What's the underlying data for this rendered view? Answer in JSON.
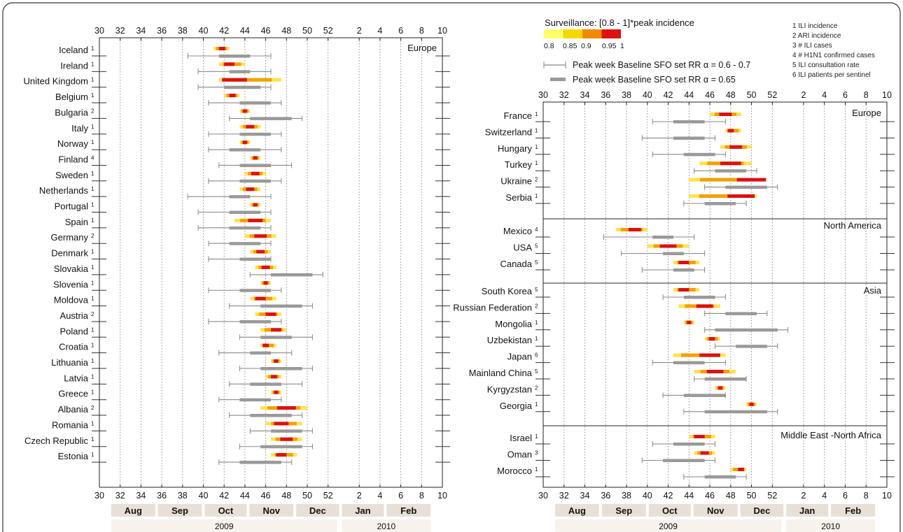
{
  "legend": {
    "scale_title": "Surveillance: [0.8 - 1]*peak incidence",
    "scale_colors": [
      "#ffff66",
      "#f5d800",
      "#f08a00",
      "#e01010"
    ],
    "scale_ticks": [
      "0.8",
      "0.85",
      "0.9",
      "0.95",
      "1"
    ],
    "thin_label": "Peak week Baseline SFO set RR α = 0.6 - 0.7",
    "thick_label": "Peak week Baseline SFO set RR α = 0.65",
    "sources": [
      "1 ILI incidence",
      "2 ARI incidence",
      "3 # ILI cases",
      "4 # H1N1 confirmed cases",
      "5 ILI consultation rate",
      "6 ILI patients per sentinel"
    ]
  },
  "colors": {
    "thin_bar": "#888888",
    "thick_bar": "#999999",
    "month_box": "#e8e0d6",
    "year_box": "#f7f2ec"
  },
  "chart_data": [
    {
      "type": "range",
      "x_axis": {
        "ticks": [
          "30",
          "32",
          "34",
          "36",
          "38",
          "40",
          "42",
          "44",
          "46",
          "48",
          "50",
          "52",
          "2",
          "4",
          "6",
          "8",
          "10"
        ]
      },
      "months": [
        "Aug",
        "Sep",
        "Oct",
        "Nov",
        "Dec",
        "Jan",
        "Feb"
      ],
      "years": [
        "2009",
        "2010"
      ],
      "regions": [
        {
          "name": "Europe",
          "rows": [
            {
              "country": "Iceland",
              "src": "1",
              "surv": [
                41,
                42.5
              ],
              "peak": 41.8,
              "thin": [
                38.5,
                46.5
              ],
              "thick": [
                41.5,
                44.5
              ]
            },
            {
              "country": "Ireland",
              "src": "1",
              "surv": [
                41.5,
                44
              ],
              "peak": 42.5,
              "thin": [
                39.5,
                46.5
              ],
              "thick": [
                42.5,
                44.5
              ]
            },
            {
              "country": "United Kingdom",
              "src": "1",
              "surv": [
                41.5,
                47.5
              ],
              "peak": 43,
              "thin": [
                39.5,
                46.5
              ],
              "thick": [
                42,
                45.5
              ]
            },
            {
              "country": "Belgium",
              "src": "1",
              "surv": [
                42,
                43.5
              ],
              "peak": 42.8,
              "thin": [
                40.5,
                47.5
              ],
              "thick": [
                43.5,
                46.5
              ]
            },
            {
              "country": "Bulgaria",
              "src": "2",
              "surv": [
                43.5,
                44.5
              ],
              "peak": 44,
              "thin": [
                42.5,
                49.5
              ],
              "thick": [
                44.5,
                48.5
              ]
            },
            {
              "country": "Italy",
              "src": "1",
              "surv": [
                43.5,
                45.5
              ],
              "peak": 44.5,
              "thin": [
                40.5,
                47.5
              ],
              "thick": [
                43.5,
                46.5
              ]
            },
            {
              "country": "Norway",
              "src": "1",
              "surv": [
                43.5,
                44.5
              ],
              "peak": 44,
              "thin": [
                40.5,
                47.5
              ],
              "thick": [
                42.5,
                45.5
              ]
            },
            {
              "country": "Finland",
              "src": "4",
              "surv": [
                44.5,
                45.5
              ],
              "peak": 45,
              "thin": [
                41.5,
                48.5
              ],
              "thick": [
                43.5,
                46.5
              ]
            },
            {
              "country": "Sweden",
              "src": "1",
              "surv": [
                44,
                46
              ],
              "peak": 45,
              "thin": [
                40.5,
                47.5
              ],
              "thick": [
                43.5,
                46.5
              ]
            },
            {
              "country": "Netherlands",
              "src": "1",
              "surv": [
                43.5,
                45.5
              ],
              "peak": 44.5,
              "thin": [
                38.5,
                46.5
              ],
              "thick": [
                42.5,
                44.5
              ]
            },
            {
              "country": "Portugal",
              "src": "1",
              "surv": [
                44.5,
                45.5
              ],
              "peak": 45,
              "thin": [
                39.5,
                46.5
              ],
              "thick": [
                42.5,
                45.5
              ]
            },
            {
              "country": "Spain",
              "src": "1",
              "surv": [
                43,
                46.5
              ],
              "peak": 45,
              "thin": [
                39.5,
                46.5
              ],
              "thick": [
                42.5,
                45.5
              ]
            },
            {
              "country": "Germany",
              "src": "2",
              "surv": [
                44,
                47
              ],
              "peak": 45.5,
              "thin": [
                40.5,
                46.5
              ],
              "thick": [
                42.5,
                45.5
              ]
            },
            {
              "country": "Denmark",
              "src": "1",
              "surv": [
                44.5,
                46.5
              ],
              "peak": 45.5,
              "thin": [
                40.5,
                46.5
              ],
              "thick": [
                43.5,
                46.5
              ]
            },
            {
              "country": "Slovakia",
              "src": "1",
              "surv": [
                45,
                47
              ],
              "peak": 46,
              "thin": [
                44.5,
                51.5
              ],
              "thick": [
                46.5,
                50.5
              ]
            },
            {
              "country": "Slovenia",
              "src": "1",
              "surv": [
                45.5,
                46.5
              ],
              "peak": 46,
              "thin": [
                40.5,
                47.5
              ],
              "thick": [
                43.5,
                46.5
              ]
            },
            {
              "country": "Moldova",
              "src": "1",
              "surv": [
                44.5,
                47
              ],
              "peak": 45.5,
              "thin": [
                42.5,
                50.5
              ],
              "thick": [
                45.5,
                49.5
              ]
            },
            {
              "country": "Austria",
              "src": "2",
              "surv": [
                45,
                47.5
              ],
              "peak": 46.5,
              "thin": [
                40.5,
                47.5
              ],
              "thick": [
                43.5,
                46.5
              ]
            },
            {
              "country": "Poland",
              "src": "1",
              "surv": [
                45.5,
                48
              ],
              "peak": 47,
              "thin": [
                43.5,
                50.5
              ],
              "thick": [
                45.5,
                48.5
              ]
            },
            {
              "country": "Croatia",
              "src": "1",
              "surv": [
                45.5,
                47
              ],
              "peak": 46,
              "thin": [
                41.5,
                48.5
              ],
              "thick": [
                44.5,
                46.5
              ]
            },
            {
              "country": "Lithuania",
              "src": "1",
              "surv": [
                46.5,
                47.5
              ],
              "peak": 47,
              "thin": [
                43.5,
                50.5
              ],
              "thick": [
                45.5,
                49.5
              ]
            },
            {
              "country": "Latvia",
              "src": "1",
              "surv": [
                46,
                47.5
              ],
              "peak": 46.8,
              "thin": [
                42.5,
                49.5
              ],
              "thick": [
                44.5,
                47.5
              ]
            },
            {
              "country": "Greece",
              "src": "1",
              "surv": [
                46.5,
                47.5
              ],
              "peak": 47,
              "thin": [
                41.5,
                47.5
              ],
              "thick": [
                43.5,
                46.5
              ]
            },
            {
              "country": "Albania",
              "src": "2",
              "surv": [
                45.5,
                50
              ],
              "peak": 48,
              "thin": [
                42.5,
                49.5
              ],
              "thick": [
                44.5,
                48.5
              ]
            },
            {
              "country": "Romania",
              "src": "1",
              "surv": [
                46,
                49.5
              ],
              "peak": 47.5,
              "thin": [
                44.5,
                50.5
              ],
              "thick": [
                46.5,
                49.5
              ]
            },
            {
              "country": "Czech Republic",
              "src": "1",
              "surv": [
                46.5,
                49.5
              ],
              "peak": 48,
              "thin": [
                43.5,
                50.5
              ],
              "thick": [
                45.5,
                49.5
              ]
            },
            {
              "country": "Estonia",
              "src": "1",
              "surv": [
                46.5,
                49
              ],
              "peak": 47.5,
              "thin": [
                41.5,
                48.5
              ],
              "thick": [
                43.5,
                47.5
              ]
            }
          ]
        }
      ]
    },
    {
      "type": "range",
      "x_axis": {
        "ticks": [
          "30",
          "32",
          "34",
          "36",
          "38",
          "40",
          "42",
          "44",
          "46",
          "48",
          "50",
          "52",
          "2",
          "4",
          "6",
          "8",
          "10"
        ]
      },
      "months": [
        "Aug",
        "Sep",
        "Oct",
        "Nov",
        "Dec",
        "Jan",
        "Feb"
      ],
      "years": [
        "2009",
        "2010"
      ],
      "regions": [
        {
          "name": "Europe",
          "rows": [
            {
              "country": "France",
              "src": "1",
              "surv": [
                46,
                49
              ],
              "peak": 47.5,
              "thin": [
                40.5,
                47.5
              ],
              "thick": [
                42.5,
                45.5
              ]
            },
            {
              "country": "Switzerland",
              "src": "1",
              "surv": [
                47.5,
                49
              ],
              "peak": 48,
              "thin": [
                39.5,
                46.5
              ],
              "thick": [
                42.5,
                45.5
              ]
            },
            {
              "country": "Hungary",
              "src": "1",
              "surv": [
                47,
                50
              ],
              "peak": 48.5,
              "thin": [
                40.5,
                47.5
              ],
              "thick": [
                43.5,
                46.5
              ]
            },
            {
              "country": "Turkey",
              "src": "1",
              "surv": [
                45,
                50
              ],
              "peak": 48,
              "thin": [
                44.5,
                50.5
              ],
              "thick": [
                46.5,
                49.5
              ]
            },
            {
              "country": "Ukraine",
              "src": "2",
              "surv": [
                44,
                51
              ],
              "peak": 50,
              "thin": [
                45.5,
                52.5
              ],
              "thick": [
                47.5,
                51.5
              ]
            },
            {
              "country": "Serbia",
              "src": "1",
              "surv": [
                44,
                50.5
              ],
              "peak": 49,
              "thin": [
                43.5,
                49.5
              ],
              "thick": [
                45.5,
                48.5
              ]
            }
          ]
        },
        {
          "name": "North America",
          "rows": [
            {
              "country": "Mexico",
              "src": "4",
              "surv": [
                37,
                40
              ],
              "peak": 38.8,
              "thin": [
                35.8,
                44.5
              ],
              "thick": [
                40.5,
                42.5
              ]
            },
            {
              "country": "USA",
              "src": "5",
              "surv": [
                40,
                44
              ],
              "peak": 42,
              "thin": [
                37.5,
                45.5
              ],
              "thick": [
                41.5,
                43.5
              ]
            },
            {
              "country": "Canada",
              "src": "5",
              "surv": [
                42.5,
                45
              ],
              "peak": 43.5,
              "thin": [
                39.5,
                45.5
              ],
              "thick": [
                42.5,
                44.5
              ]
            }
          ]
        },
        {
          "name": "Asia",
          "rows": [
            {
              "country": "South Korea",
              "src": "5",
              "surv": [
                42.5,
                45
              ],
              "peak": 43.5,
              "thin": [
                41.5,
                47.5
              ],
              "thick": [
                43.5,
                46.5
              ]
            },
            {
              "country": "Russian Federation",
              "src": "2",
              "surv": [
                43,
                47
              ],
              "peak": 45.5,
              "thin": [
                45.5,
                51.5
              ],
              "thick": [
                47.5,
                50.5
              ]
            },
            {
              "country": "Mongolia",
              "src": "1",
              "surv": [
                43.5,
                44.5
              ],
              "peak": 44,
              "thin": [
                45.5,
                53.5
              ],
              "thick": [
                46.5,
                52.5
              ]
            },
            {
              "country": "Uzbekistan",
              "src": "1",
              "surv": [
                45.5,
                47
              ],
              "peak": 46.2,
              "thin": [
                46.5,
                52.5
              ],
              "thick": [
                48.5,
                51.5
              ]
            },
            {
              "country": "Japan",
              "src": "6",
              "surv": [
                42.5,
                47.5
              ],
              "peak": 46,
              "thin": [
                40.5,
                47.5
              ],
              "thick": [
                42.5,
                45.5
              ]
            },
            {
              "country": "Mainland China",
              "src": "5",
              "surv": [
                44.5,
                48.5
              ],
              "peak": 46.5,
              "thin": [
                44.5,
                49.5
              ],
              "thick": [
                45.5,
                49.5
              ]
            },
            {
              "country": "Kyrgyzstan",
              "src": "2",
              "surv": [
                46.5,
                47.5
              ],
              "peak": 47,
              "thin": [
                41.5,
                47.5
              ],
              "thick": [
                43.5,
                47.5
              ]
            },
            {
              "country": "Georgia",
              "src": "1",
              "surv": [
                49.5,
                50.5
              ],
              "peak": 50,
              "thin": [
                43.5,
                52.5
              ],
              "thick": [
                45.5,
                51.5
              ]
            }
          ]
        },
        {
          "name": "Middle East -North Africa",
          "rows": [
            {
              "country": "Israel",
              "src": "1",
              "surv": [
                44,
                46.5
              ],
              "peak": 45,
              "thin": [
                40.5,
                46.5
              ],
              "thick": [
                42.5,
                45.5
              ]
            },
            {
              "country": "Oman",
              "src": "3",
              "surv": [
                44.5,
                46.5
              ],
              "peak": 45.5,
              "thin": [
                39.5,
                46.5
              ],
              "thick": [
                41.5,
                45.5
              ]
            },
            {
              "country": "Morocco",
              "src": "1",
              "surv": [
                48,
                49.5
              ],
              "peak": 49,
              "thin": [
                43.5,
                49.5
              ],
              "thick": [
                45.5,
                48.5
              ]
            }
          ]
        }
      ]
    }
  ]
}
